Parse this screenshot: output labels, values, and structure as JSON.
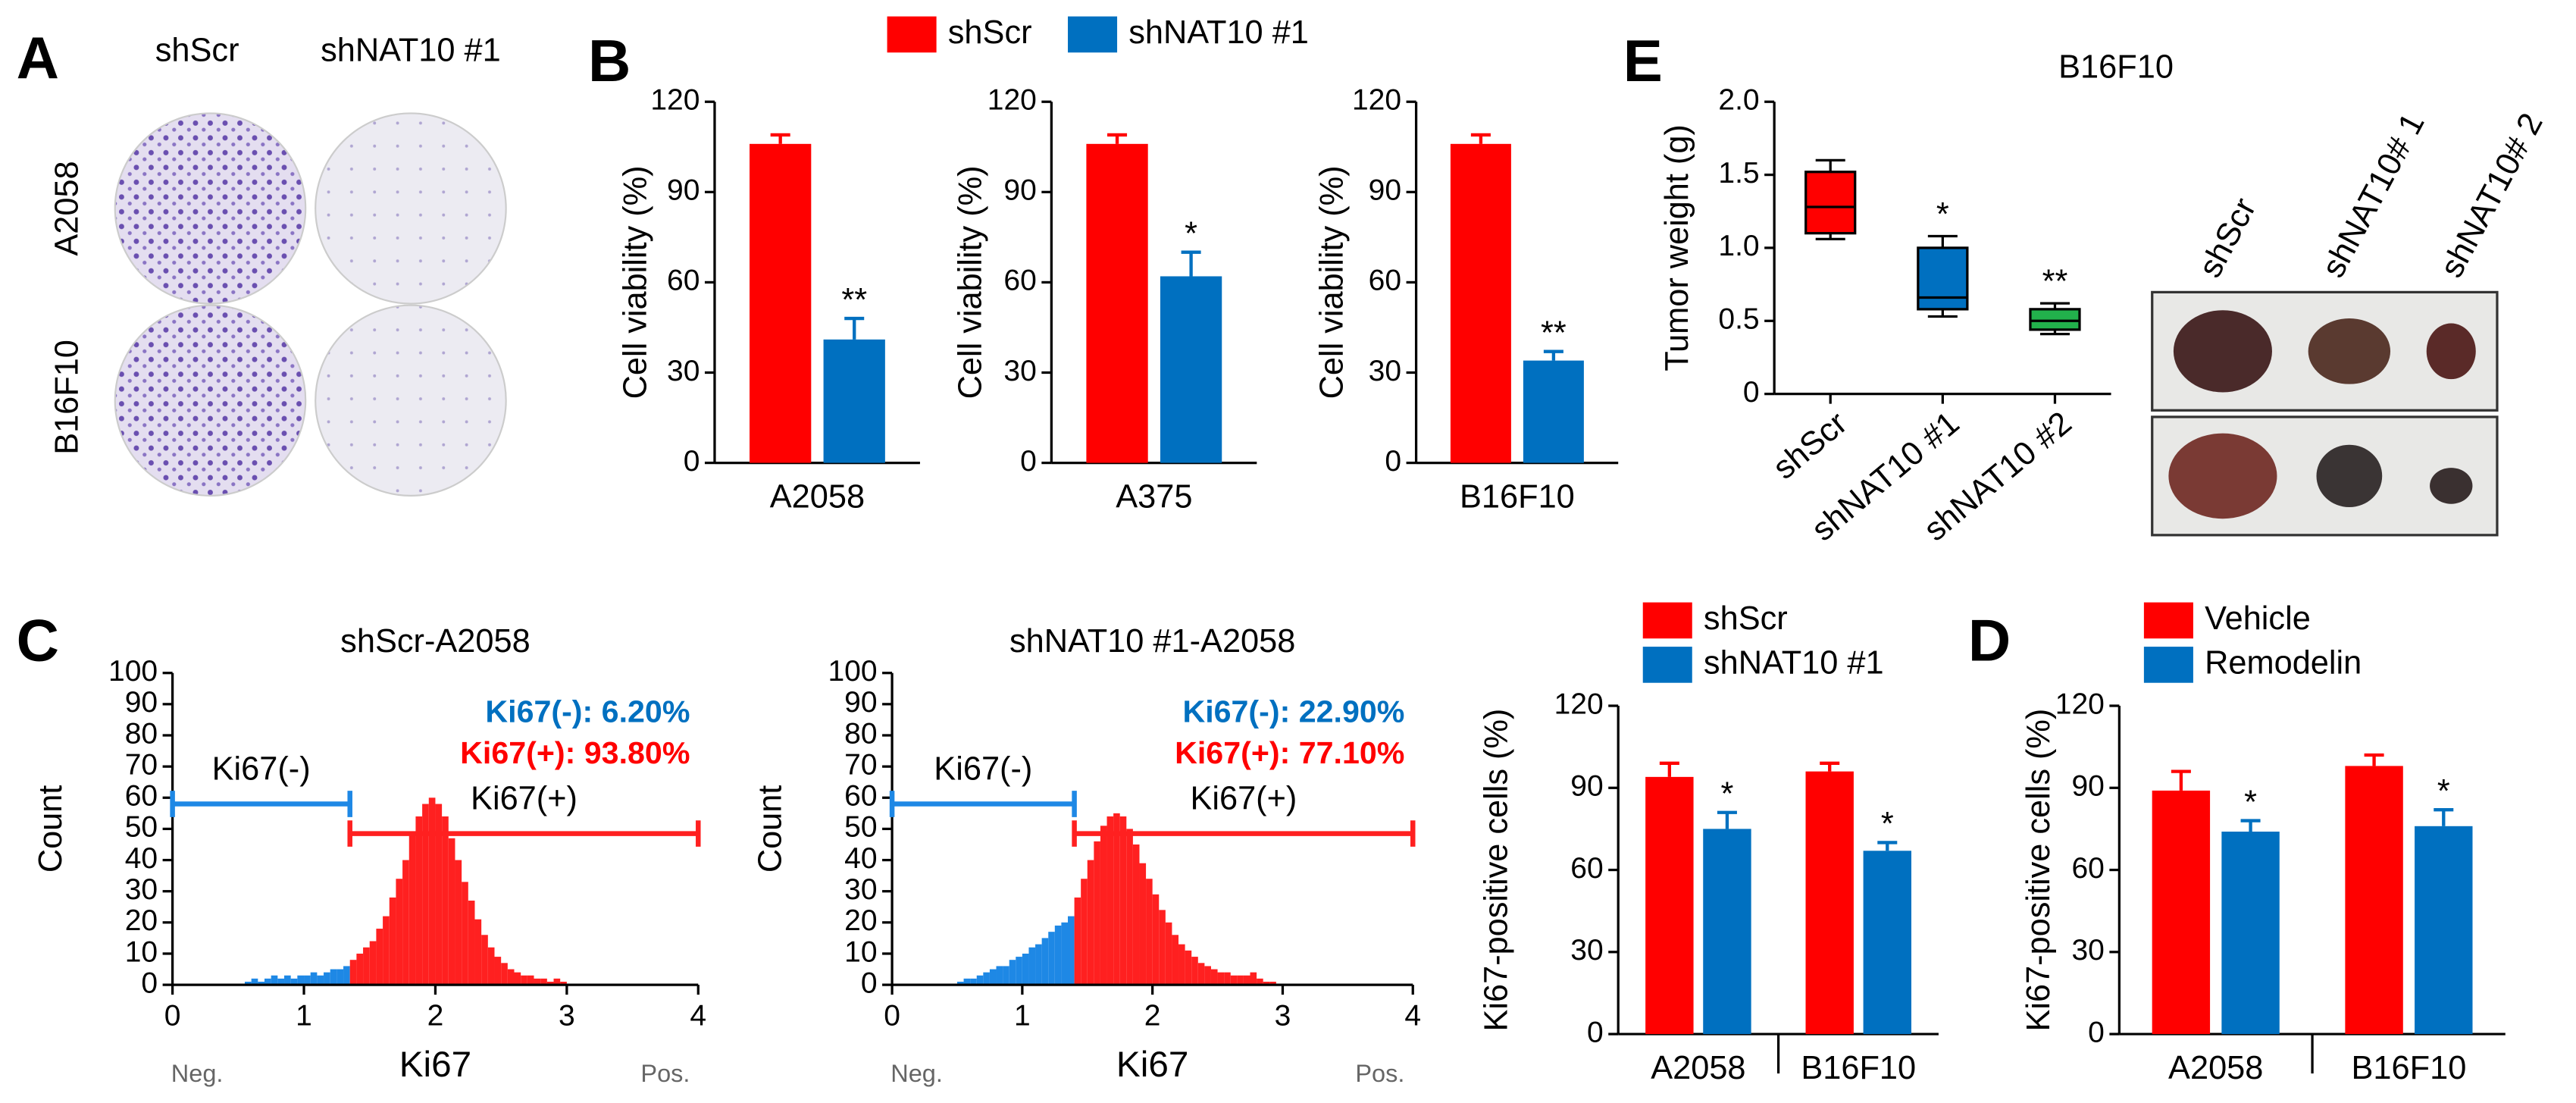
{
  "figure": {
    "panel_labels": [
      "A",
      "B",
      "C",
      "D",
      "E"
    ],
    "plates": {
      "columns": [
        "shScr",
        "shNAT10 #1"
      ],
      "rows": [
        "A2058",
        "B16F10"
      ]
    },
    "tumor_photo": {
      "columns": [
        "shScr",
        "shNAT10# 1",
        "shNAT10# 2"
      ]
    }
  },
  "chart_data": [
    {
      "type": "bar",
      "legend": "top",
      "ylabel": "Cell viability (%)",
      "categories": [
        "A2058"
      ],
      "series": [
        {
          "name": "shScr",
          "color": "#ff0000",
          "values": [
            106
          ],
          "errors": [
            3
          ]
        },
        {
          "name": "shNAT10 #1",
          "color": "#0070c0",
          "values": [
            41
          ],
          "errors": [
            7
          ],
          "significance": [
            "**"
          ]
        }
      ],
      "ylim": [
        0,
        120
      ],
      "yticks": [
        0,
        30,
        60,
        90,
        120
      ]
    },
    {
      "type": "bar",
      "ylabel": "Cell viability (%)",
      "categories": [
        "A375"
      ],
      "series": [
        {
          "color": "#ff0000",
          "values": [
            106
          ],
          "errors": [
            3
          ]
        },
        {
          "color": "#0070c0",
          "values": [
            62
          ],
          "errors": [
            8
          ],
          "significance": [
            "*"
          ]
        }
      ],
      "ylim": [
        0,
        120
      ],
      "yticks": [
        0,
        30,
        60,
        90,
        120
      ]
    },
    {
      "type": "bar",
      "ylabel": "Cell viability (%)",
      "categories": [
        "B16F10"
      ],
      "series": [
        {
          "color": "#ff0000",
          "values": [
            106
          ],
          "errors": [
            3
          ]
        },
        {
          "color": "#0070c0",
          "values": [
            34
          ],
          "errors": [
            3
          ],
          "significance": [
            "**"
          ]
        }
      ],
      "ylim": [
        0,
        120
      ],
      "yticks": [
        0,
        30,
        60,
        90,
        120
      ]
    },
    {
      "type": "box",
      "title": "B16F10",
      "ylabel": "Tumor weight (g)",
      "categories": [
        "shScr",
        "shNAT10 #1",
        "shNAT10 #2"
      ],
      "colors": [
        "#ff0000",
        "#0070c0",
        "#22b14c"
      ],
      "min": [
        1.06,
        0.53,
        0.41
      ],
      "q1": [
        1.1,
        0.58,
        0.44
      ],
      "median": [
        1.28,
        0.66,
        0.5
      ],
      "q3": [
        1.52,
        1.0,
        0.58
      ],
      "max": [
        1.6,
        1.08,
        0.62
      ],
      "significance": [
        null,
        "*",
        "**"
      ],
      "ylim": [
        0,
        2
      ],
      "yticks": [
        0,
        0.5,
        {
          "value": 1,
          "label": "1.0"
        },
        1.5,
        {
          "value": 2,
          "label": "2.0"
        }
      ]
    },
    {
      "type": "histogram",
      "title": "shScr-A2058",
      "xlabel": "Ki67",
      "ylabel": "Count",
      "xlim_labels": [
        "Neg.",
        "Pos."
      ],
      "bins": [
        0.5,
        0.55,
        0.6,
        0.65,
        0.7,
        0.75,
        0.8,
        0.85,
        0.9,
        0.95,
        1.0,
        1.05,
        1.1,
        1.15,
        1.2,
        1.25,
        1.3,
        1.35,
        1.4,
        1.45,
        1.5,
        1.55,
        1.6,
        1.65,
        1.7,
        1.75,
        1.8,
        1.85,
        1.9,
        1.95,
        2.0,
        2.05,
        2.1,
        2.15,
        2.2,
        2.25,
        2.3,
        2.35,
        2.4,
        2.45,
        2.5,
        2.55,
        2.6,
        2.65,
        2.7,
        2.75,
        2.8,
        2.85,
        2.9,
        2.95,
        3.0
      ],
      "counts": [
        0,
        1,
        2,
        1,
        2,
        3,
        2,
        3,
        2,
        3,
        3,
        4,
        3,
        4,
        5,
        5,
        6,
        8,
        10,
        12,
        14,
        18,
        22,
        28,
        34,
        40,
        48,
        54,
        58,
        60,
        58,
        54,
        47,
        40,
        33,
        27,
        21,
        16,
        12,
        9,
        7,
        5,
        4,
        3,
        3,
        2,
        2,
        1,
        2,
        1
      ],
      "gates": [
        {
          "name": "Ki67(-)",
          "range": [
            0,
            1.35
          ],
          "color": "#1e88e5"
        },
        {
          "name": "Ki67(+)",
          "range": [
            1.35,
            4
          ],
          "color": "#ff2020"
        }
      ],
      "stats": [
        {
          "value": 6.2,
          "label": "Ki67(-): 6.20%",
          "color": "#0070c0"
        },
        {
          "value": 93.8,
          "label": "Ki67(+): 93.80%",
          "color": "#ff0000"
        }
      ],
      "xlim": [
        0,
        4
      ],
      "xticks": [
        0,
        1,
        2,
        3,
        4
      ],
      "ylim": [
        0,
        100
      ],
      "yticks": [
        0,
        10,
        20,
        30,
        40,
        50,
        60,
        70,
        80,
        90,
        100
      ]
    },
    {
      "type": "histogram",
      "title": "shNAT10 #1-A2058",
      "xlabel": "Ki67",
      "ylabel": "Count",
      "xlim_labels": [
        "Neg.",
        "Pos."
      ],
      "bins": [
        0.5,
        0.55,
        0.6,
        0.65,
        0.7,
        0.75,
        0.8,
        0.85,
        0.9,
        0.95,
        1.0,
        1.05,
        1.1,
        1.15,
        1.2,
        1.25,
        1.3,
        1.35,
        1.4,
        1.45,
        1.5,
        1.55,
        1.6,
        1.65,
        1.7,
        1.75,
        1.8,
        1.85,
        1.9,
        1.95,
        2.0,
        2.05,
        2.1,
        2.15,
        2.2,
        2.25,
        2.3,
        2.35,
        2.4,
        2.45,
        2.5,
        2.55,
        2.6,
        2.65,
        2.7,
        2.75,
        2.8,
        2.85,
        2.9,
        2.95,
        3.0
      ],
      "counts": [
        1,
        2,
        2,
        3,
        4,
        5,
        6,
        6,
        8,
        9,
        10,
        12,
        13,
        15,
        17,
        19,
        20,
        22,
        28,
        34,
        40,
        46,
        51,
        54,
        55,
        54,
        50,
        45,
        39,
        34,
        29,
        24,
        20,
        16,
        13,
        11,
        9,
        7,
        6,
        5,
        4,
        4,
        3,
        3,
        3,
        4,
        2,
        1,
        1,
        0
      ],
      "gates": [
        {
          "name": "Ki67(-)",
          "range": [
            0,
            1.4
          ],
          "color": "#1e88e5"
        },
        {
          "name": "Ki67(+)",
          "range": [
            1.4,
            4
          ],
          "color": "#ff2020"
        }
      ],
      "stats": [
        {
          "value": 22.9,
          "label": "Ki67(-): 22.90%",
          "color": "#0070c0"
        },
        {
          "value": 77.1,
          "label": "Ki67(+): 77.10%",
          "color": "#ff0000"
        }
      ],
      "xlim": [
        0,
        4
      ],
      "xticks": [
        0,
        1,
        2,
        3,
        4
      ],
      "ylim": [
        0,
        100
      ],
      "yticks": [
        0,
        10,
        20,
        30,
        40,
        50,
        60,
        70,
        80,
        90,
        100
      ]
    },
    {
      "type": "bar",
      "legend": "upper left",
      "ylabel": "Ki67-positive cells (%)",
      "categories": [
        "A2058",
        "B16F10"
      ],
      "series": [
        {
          "name": "shScr",
          "color": "#ff0000",
          "values": [
            94,
            96
          ],
          "errors": [
            5,
            3
          ]
        },
        {
          "name": "shNAT10 #1",
          "color": "#0070c0",
          "values": [
            75,
            67
          ],
          "errors": [
            6,
            3
          ],
          "significance": [
            "*",
            "*"
          ]
        }
      ],
      "ylim": [
        0,
        120
      ],
      "yticks": [
        0,
        30,
        60,
        90,
        120
      ]
    },
    {
      "type": "bar",
      "legend": "upper left",
      "ylabel": "Ki67-positive cells (%)",
      "categories": [
        "A2058",
        "B16F10"
      ],
      "series": [
        {
          "name": "Vehicle",
          "color": "#ff0000",
          "values": [
            89,
            98
          ],
          "errors": [
            7,
            4
          ]
        },
        {
          "name": "Remodelin",
          "color": "#0070c0",
          "values": [
            74,
            76
          ],
          "errors": [
            4,
            6
          ],
          "significance": [
            "*",
            "*"
          ]
        }
      ],
      "ylim": [
        0,
        120
      ],
      "yticks": [
        0,
        30,
        60,
        90,
        120
      ]
    }
  ]
}
